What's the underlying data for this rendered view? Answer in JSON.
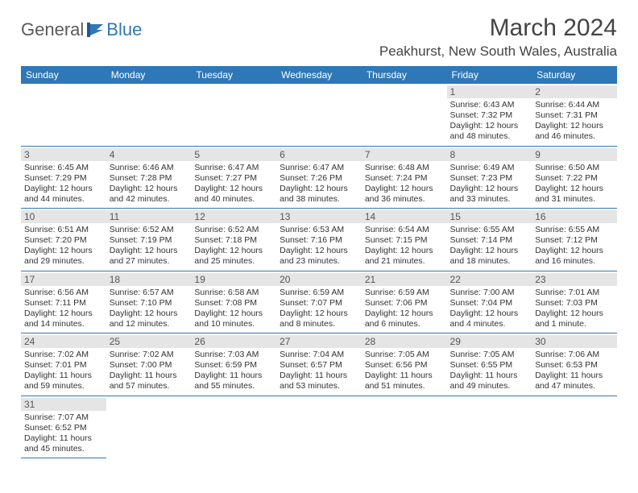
{
  "logo": {
    "part1": "General",
    "part2": "Blue"
  },
  "title": "March 2024",
  "location": "Peakhurst, New South Wales, Australia",
  "colors": {
    "header_bg": "#2f78b7",
    "header_text": "#ffffff",
    "daynum_bg": "#e5e5e5",
    "border": "#2f78b7",
    "title_color": "#444444",
    "body_text": "#333333"
  },
  "day_headers": [
    "Sunday",
    "Monday",
    "Tuesday",
    "Wednesday",
    "Thursday",
    "Friday",
    "Saturday"
  ],
  "weeks": [
    [
      null,
      null,
      null,
      null,
      null,
      {
        "n": "1",
        "sr": "Sunrise: 6:43 AM",
        "ss": "Sunset: 7:32 PM",
        "d1": "Daylight: 12 hours",
        "d2": "and 48 minutes."
      },
      {
        "n": "2",
        "sr": "Sunrise: 6:44 AM",
        "ss": "Sunset: 7:31 PM",
        "d1": "Daylight: 12 hours",
        "d2": "and 46 minutes."
      }
    ],
    [
      {
        "n": "3",
        "sr": "Sunrise: 6:45 AM",
        "ss": "Sunset: 7:29 PM",
        "d1": "Daylight: 12 hours",
        "d2": "and 44 minutes."
      },
      {
        "n": "4",
        "sr": "Sunrise: 6:46 AM",
        "ss": "Sunset: 7:28 PM",
        "d1": "Daylight: 12 hours",
        "d2": "and 42 minutes."
      },
      {
        "n": "5",
        "sr": "Sunrise: 6:47 AM",
        "ss": "Sunset: 7:27 PM",
        "d1": "Daylight: 12 hours",
        "d2": "and 40 minutes."
      },
      {
        "n": "6",
        "sr": "Sunrise: 6:47 AM",
        "ss": "Sunset: 7:26 PM",
        "d1": "Daylight: 12 hours",
        "d2": "and 38 minutes."
      },
      {
        "n": "7",
        "sr": "Sunrise: 6:48 AM",
        "ss": "Sunset: 7:24 PM",
        "d1": "Daylight: 12 hours",
        "d2": "and 36 minutes."
      },
      {
        "n": "8",
        "sr": "Sunrise: 6:49 AM",
        "ss": "Sunset: 7:23 PM",
        "d1": "Daylight: 12 hours",
        "d2": "and 33 minutes."
      },
      {
        "n": "9",
        "sr": "Sunrise: 6:50 AM",
        "ss": "Sunset: 7:22 PM",
        "d1": "Daylight: 12 hours",
        "d2": "and 31 minutes."
      }
    ],
    [
      {
        "n": "10",
        "sr": "Sunrise: 6:51 AM",
        "ss": "Sunset: 7:20 PM",
        "d1": "Daylight: 12 hours",
        "d2": "and 29 minutes."
      },
      {
        "n": "11",
        "sr": "Sunrise: 6:52 AM",
        "ss": "Sunset: 7:19 PM",
        "d1": "Daylight: 12 hours",
        "d2": "and 27 minutes."
      },
      {
        "n": "12",
        "sr": "Sunrise: 6:52 AM",
        "ss": "Sunset: 7:18 PM",
        "d1": "Daylight: 12 hours",
        "d2": "and 25 minutes."
      },
      {
        "n": "13",
        "sr": "Sunrise: 6:53 AM",
        "ss": "Sunset: 7:16 PM",
        "d1": "Daylight: 12 hours",
        "d2": "and 23 minutes."
      },
      {
        "n": "14",
        "sr": "Sunrise: 6:54 AM",
        "ss": "Sunset: 7:15 PM",
        "d1": "Daylight: 12 hours",
        "d2": "and 21 minutes."
      },
      {
        "n": "15",
        "sr": "Sunrise: 6:55 AM",
        "ss": "Sunset: 7:14 PM",
        "d1": "Daylight: 12 hours",
        "d2": "and 18 minutes."
      },
      {
        "n": "16",
        "sr": "Sunrise: 6:55 AM",
        "ss": "Sunset: 7:12 PM",
        "d1": "Daylight: 12 hours",
        "d2": "and 16 minutes."
      }
    ],
    [
      {
        "n": "17",
        "sr": "Sunrise: 6:56 AM",
        "ss": "Sunset: 7:11 PM",
        "d1": "Daylight: 12 hours",
        "d2": "and 14 minutes."
      },
      {
        "n": "18",
        "sr": "Sunrise: 6:57 AM",
        "ss": "Sunset: 7:10 PM",
        "d1": "Daylight: 12 hours",
        "d2": "and 12 minutes."
      },
      {
        "n": "19",
        "sr": "Sunrise: 6:58 AM",
        "ss": "Sunset: 7:08 PM",
        "d1": "Daylight: 12 hours",
        "d2": "and 10 minutes."
      },
      {
        "n": "20",
        "sr": "Sunrise: 6:59 AM",
        "ss": "Sunset: 7:07 PM",
        "d1": "Daylight: 12 hours",
        "d2": "and 8 minutes."
      },
      {
        "n": "21",
        "sr": "Sunrise: 6:59 AM",
        "ss": "Sunset: 7:06 PM",
        "d1": "Daylight: 12 hours",
        "d2": "and 6 minutes."
      },
      {
        "n": "22",
        "sr": "Sunrise: 7:00 AM",
        "ss": "Sunset: 7:04 PM",
        "d1": "Daylight: 12 hours",
        "d2": "and 4 minutes."
      },
      {
        "n": "23",
        "sr": "Sunrise: 7:01 AM",
        "ss": "Sunset: 7:03 PM",
        "d1": "Daylight: 12 hours",
        "d2": "and 1 minute."
      }
    ],
    [
      {
        "n": "24",
        "sr": "Sunrise: 7:02 AM",
        "ss": "Sunset: 7:01 PM",
        "d1": "Daylight: 11 hours",
        "d2": "and 59 minutes."
      },
      {
        "n": "25",
        "sr": "Sunrise: 7:02 AM",
        "ss": "Sunset: 7:00 PM",
        "d1": "Daylight: 11 hours",
        "d2": "and 57 minutes."
      },
      {
        "n": "26",
        "sr": "Sunrise: 7:03 AM",
        "ss": "Sunset: 6:59 PM",
        "d1": "Daylight: 11 hours",
        "d2": "and 55 minutes."
      },
      {
        "n": "27",
        "sr": "Sunrise: 7:04 AM",
        "ss": "Sunset: 6:57 PM",
        "d1": "Daylight: 11 hours",
        "d2": "and 53 minutes."
      },
      {
        "n": "28",
        "sr": "Sunrise: 7:05 AM",
        "ss": "Sunset: 6:56 PM",
        "d1": "Daylight: 11 hours",
        "d2": "and 51 minutes."
      },
      {
        "n": "29",
        "sr": "Sunrise: 7:05 AM",
        "ss": "Sunset: 6:55 PM",
        "d1": "Daylight: 11 hours",
        "d2": "and 49 minutes."
      },
      {
        "n": "30",
        "sr": "Sunrise: 7:06 AM",
        "ss": "Sunset: 6:53 PM",
        "d1": "Daylight: 11 hours",
        "d2": "and 47 minutes."
      }
    ],
    [
      {
        "n": "31",
        "sr": "Sunrise: 7:07 AM",
        "ss": "Sunset: 6:52 PM",
        "d1": "Daylight: 11 hours",
        "d2": "and 45 minutes."
      },
      null,
      null,
      null,
      null,
      null,
      null
    ]
  ]
}
